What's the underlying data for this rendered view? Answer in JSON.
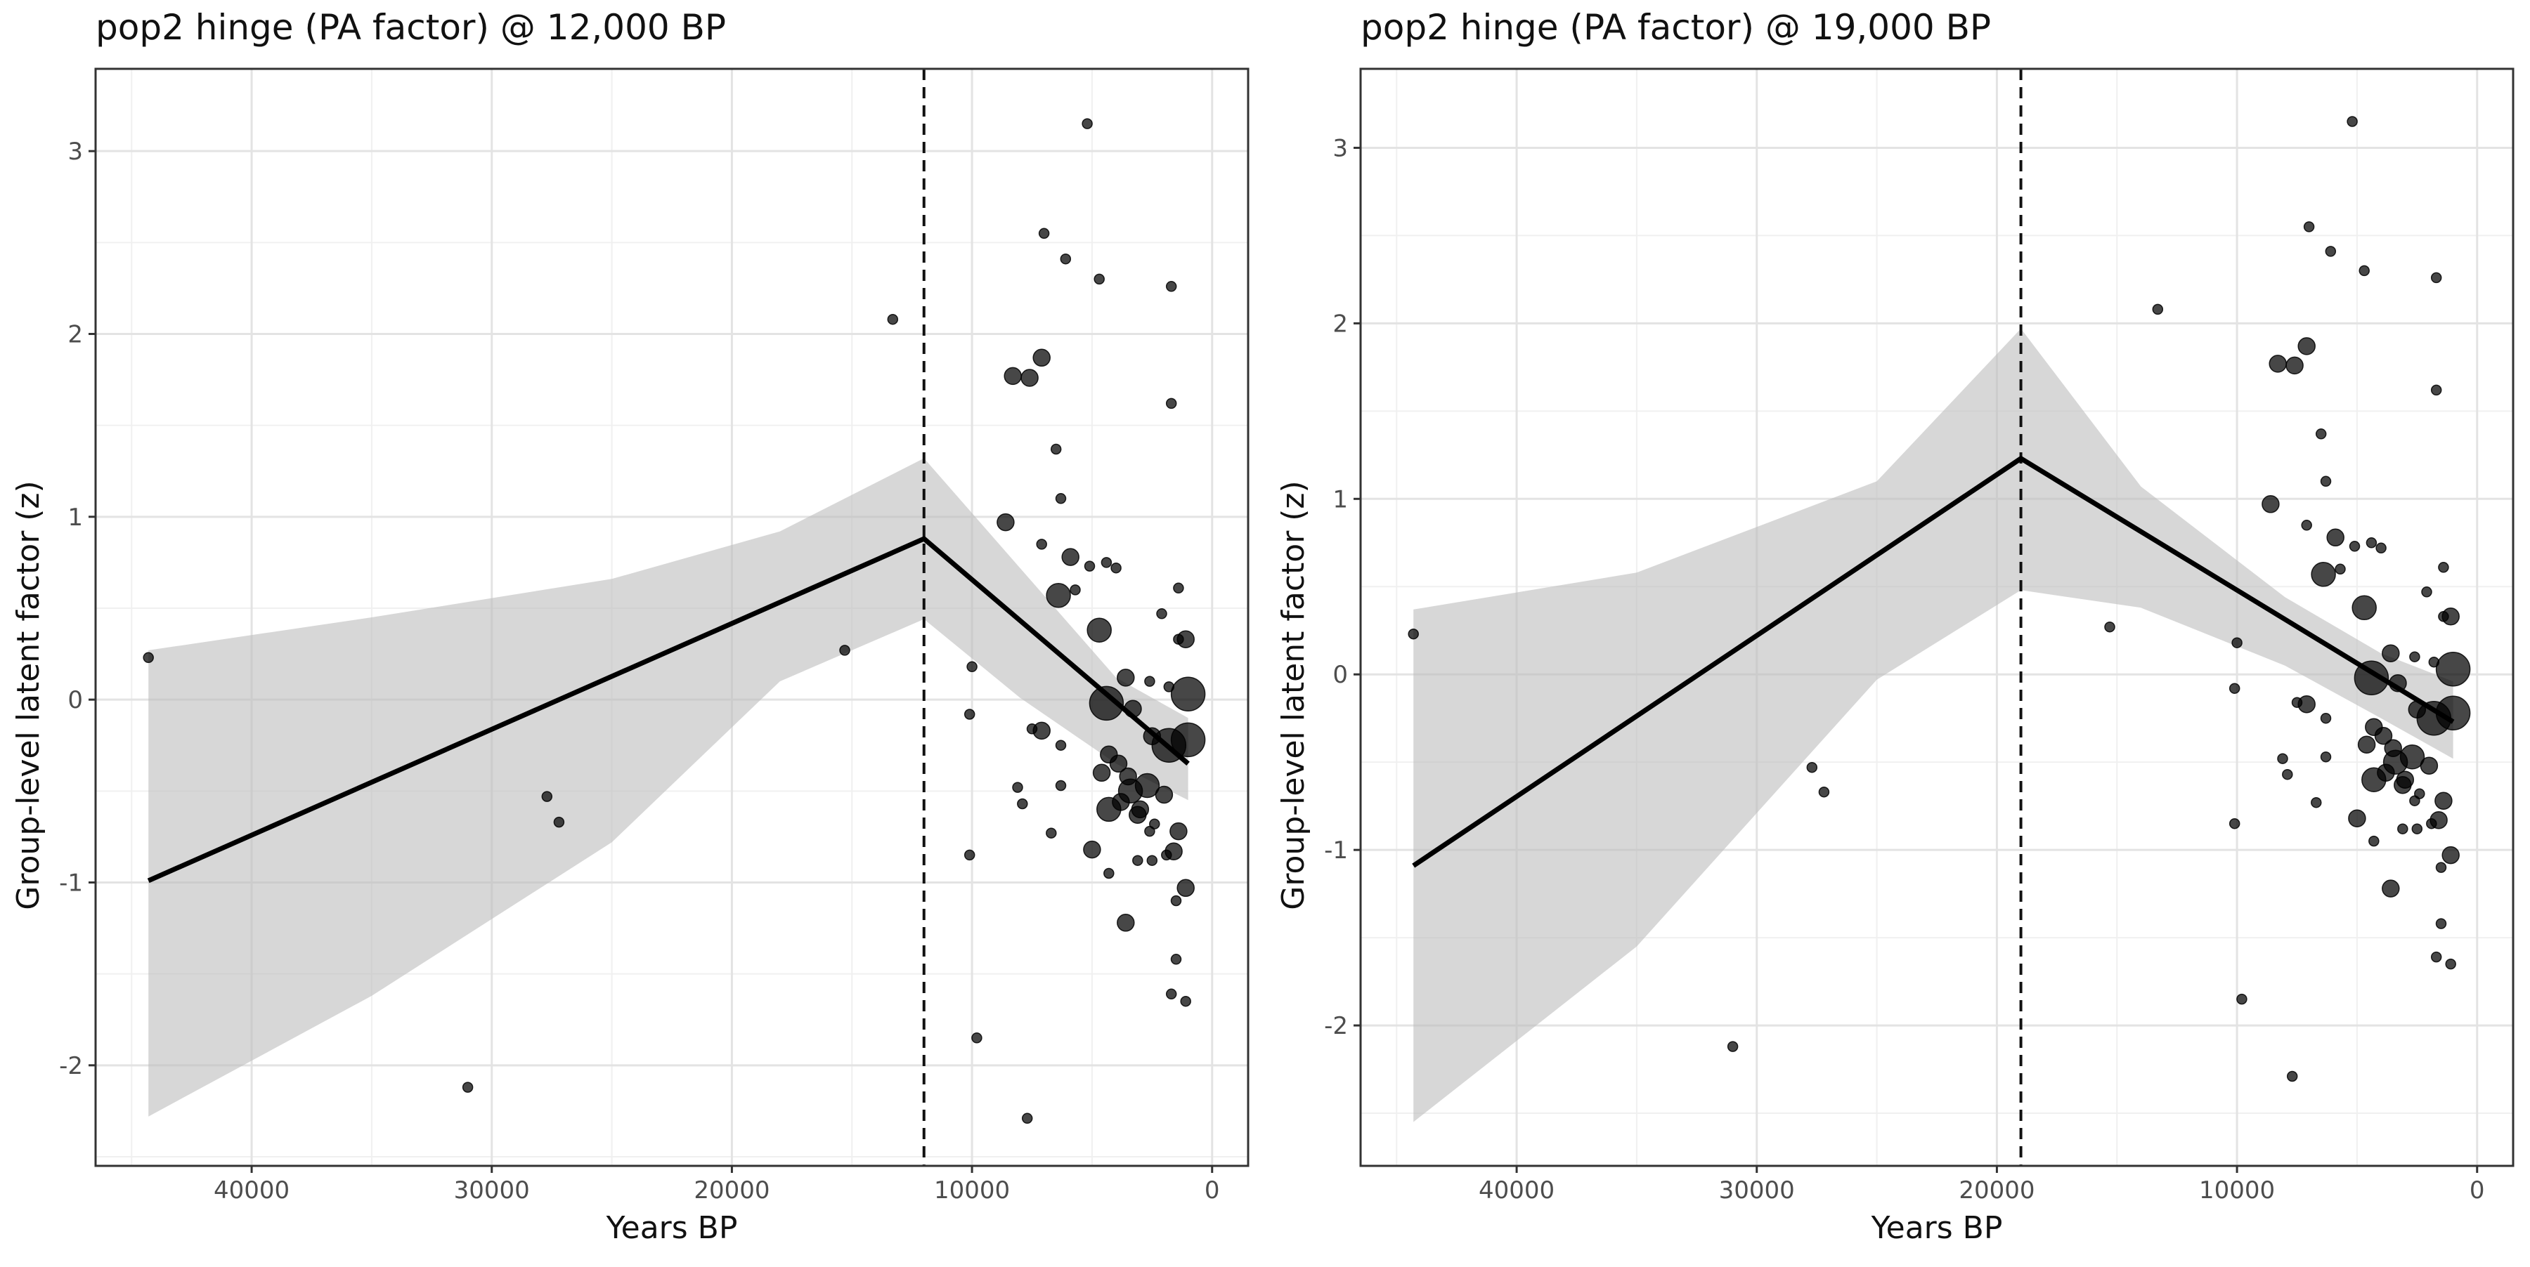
{
  "chart_data": [
    {
      "type": "scatter",
      "title": "pop2 hinge (PA factor) @ 12,000 BP",
      "xlabel": "Years BP",
      "ylabel": "Group-level latent factor (z)",
      "x_reversed": true,
      "xlim": [
        46500,
        -1500
      ],
      "ylim": [
        -2.55,
        3.45
      ],
      "x_ticks": [
        40000,
        30000,
        20000,
        10000,
        0
      ],
      "x_tick_labels": [
        "40000",
        "30000",
        "20000",
        "10000",
        "0"
      ],
      "y_ticks": [
        -2,
        -1,
        0,
        1,
        2,
        3
      ],
      "y_tick_labels": [
        "-2",
        "-1",
        "0",
        "1",
        "2",
        "3"
      ],
      "grid": true,
      "hinge": 12000,
      "fit_line": [
        [
          44300,
          -0.99
        ],
        [
          12000,
          0.88
        ],
        [
          1000,
          -0.35
        ]
      ],
      "ribbon_upper": [
        [
          44300,
          0.27
        ],
        [
          35000,
          0.45
        ],
        [
          25000,
          0.66
        ],
        [
          18000,
          0.92
        ],
        [
          12000,
          1.32
        ],
        [
          8000,
          0.72
        ],
        [
          4000,
          0.12
        ],
        [
          1000,
          -0.1
        ]
      ],
      "ribbon_lower": [
        [
          44300,
          -2.28
        ],
        [
          35000,
          -1.62
        ],
        [
          25000,
          -0.78
        ],
        [
          18000,
          0.1
        ],
        [
          12000,
          0.44
        ],
        [
          8000,
          0.01
        ],
        [
          4000,
          -0.35
        ],
        [
          1000,
          -0.55
        ]
      ],
      "points": [
        [
          44300,
          0.23,
          1
        ],
        [
          31000,
          -2.12,
          1
        ],
        [
          27700,
          -0.53,
          1
        ],
        [
          27200,
          -0.67,
          1
        ],
        [
          15300,
          0.27,
          1
        ],
        [
          13300,
          2.08,
          1
        ],
        [
          10000,
          0.18,
          1
        ],
        [
          10100,
          -0.08,
          1
        ],
        [
          10100,
          -0.85,
          1
        ],
        [
          9800,
          -1.85,
          1
        ],
        [
          7700,
          -2.29,
          1
        ],
        [
          5200,
          3.15,
          1
        ],
        [
          7000,
          2.55,
          1
        ],
        [
          6100,
          2.41,
          1
        ],
        [
          4700,
          2.3,
          1
        ],
        [
          1700,
          2.26,
          1
        ],
        [
          1700,
          1.62,
          1
        ],
        [
          8300,
          1.77,
          2
        ],
        [
          7600,
          1.76,
          2
        ],
        [
          7100,
          1.87,
          2
        ],
        [
          6500,
          1.37,
          1
        ],
        [
          6300,
          1.1,
          1
        ],
        [
          8600,
          0.97,
          2
        ],
        [
          7100,
          0.85,
          1
        ],
        [
          5900,
          0.78,
          2
        ],
        [
          5100,
          0.73,
          1
        ],
        [
          4400,
          0.75,
          1
        ],
        [
          4000,
          0.72,
          1
        ],
        [
          6400,
          0.57,
          3
        ],
        [
          5700,
          0.6,
          1
        ],
        [
          1400,
          0.61,
          1
        ],
        [
          2100,
          0.47,
          1
        ],
        [
          4700,
          0.38,
          3
        ],
        [
          3600,
          0.12,
          2
        ],
        [
          2600,
          0.1,
          1
        ],
        [
          1800,
          0.07,
          1
        ],
        [
          1100,
          0.33,
          2
        ],
        [
          1400,
          0.33,
          1
        ],
        [
          1000,
          0.03,
          4
        ],
        [
          4400,
          -0.02,
          4
        ],
        [
          3300,
          -0.05,
          2
        ],
        [
          2500,
          -0.2,
          2
        ],
        [
          1800,
          -0.25,
          4
        ],
        [
          1000,
          -0.22,
          4
        ],
        [
          7500,
          -0.16,
          1
        ],
        [
          7100,
          -0.17,
          2
        ],
        [
          6300,
          -0.25,
          1
        ],
        [
          4300,
          -0.3,
          2
        ],
        [
          3900,
          -0.35,
          2
        ],
        [
          4600,
          -0.4,
          2
        ],
        [
          3500,
          -0.42,
          2
        ],
        [
          2700,
          -0.47,
          3
        ],
        [
          2000,
          -0.52,
          2
        ],
        [
          3400,
          -0.5,
          3
        ],
        [
          8100,
          -0.48,
          1
        ],
        [
          7900,
          -0.57,
          1
        ],
        [
          6300,
          -0.47,
          1
        ],
        [
          4300,
          -0.6,
          3
        ],
        [
          3800,
          -0.56,
          2
        ],
        [
          3000,
          -0.6,
          2
        ],
        [
          2400,
          -0.68,
          1
        ],
        [
          2600,
          -0.72,
          1
        ],
        [
          3100,
          -0.63,
          2
        ],
        [
          1400,
          -0.72,
          2
        ],
        [
          1600,
          -0.83,
          2
        ],
        [
          2500,
          -0.88,
          1
        ],
        [
          1900,
          -0.85,
          1
        ],
        [
          6700,
          -0.73,
          1
        ],
        [
          5000,
          -0.82,
          2
        ],
        [
          3100,
          -0.88,
          1
        ],
        [
          4300,
          -0.95,
          1
        ],
        [
          3600,
          -1.22,
          2
        ],
        [
          1100,
          -1.03,
          2
        ],
        [
          1500,
          -1.1,
          1
        ],
        [
          1500,
          -1.42,
          1
        ],
        [
          1700,
          -1.61,
          1
        ],
        [
          1100,
          -1.65,
          1
        ]
      ]
    },
    {
      "type": "scatter",
      "title": "pop2 hinge (PA factor) @ 19,000 BP",
      "xlabel": "Years BP",
      "ylabel": "Group-level latent factor (z)",
      "x_reversed": true,
      "xlim": [
        46500,
        -1500
      ],
      "ylim": [
        -2.8,
        3.45
      ],
      "x_ticks": [
        40000,
        30000,
        20000,
        10000,
        0
      ],
      "x_tick_labels": [
        "40000",
        "30000",
        "20000",
        "10000",
        "0"
      ],
      "y_ticks": [
        -2,
        -1,
        0,
        1,
        2,
        3
      ],
      "y_tick_labels": [
        "-2",
        "-1",
        "0",
        "1",
        "2",
        "3"
      ],
      "grid": true,
      "hinge": 19000,
      "fit_line": [
        [
          44300,
          -1.09
        ],
        [
          19000,
          1.23
        ],
        [
          1000,
          -0.27
        ]
      ],
      "ribbon_upper": [
        [
          44300,
          0.37
        ],
        [
          35000,
          0.58
        ],
        [
          25000,
          1.1
        ],
        [
          19000,
          1.97
        ],
        [
          14000,
          1.07
        ],
        [
          8000,
          0.44
        ],
        [
          4000,
          0.12
        ],
        [
          1000,
          -0.04
        ]
      ],
      "ribbon_lower": [
        [
          44300,
          -2.55
        ],
        [
          35000,
          -1.55
        ],
        [
          25000,
          -0.03
        ],
        [
          19000,
          0.48
        ],
        [
          14000,
          0.38
        ],
        [
          8000,
          0.05
        ],
        [
          4000,
          -0.25
        ],
        [
          1000,
          -0.48
        ]
      ],
      "points": [
        [
          44300,
          0.23,
          1
        ],
        [
          31000,
          -2.12,
          1
        ],
        [
          27700,
          -0.53,
          1
        ],
        [
          27200,
          -0.67,
          1
        ],
        [
          15300,
          0.27,
          1
        ],
        [
          13300,
          2.08,
          1
        ],
        [
          10000,
          0.18,
          1
        ],
        [
          10100,
          -0.08,
          1
        ],
        [
          10100,
          -0.85,
          1
        ],
        [
          9800,
          -1.85,
          1
        ],
        [
          7700,
          -2.29,
          1
        ],
        [
          5200,
          3.15,
          1
        ],
        [
          7000,
          2.55,
          1
        ],
        [
          6100,
          2.41,
          1
        ],
        [
          4700,
          2.3,
          1
        ],
        [
          1700,
          2.26,
          1
        ],
        [
          1700,
          1.62,
          1
        ],
        [
          8300,
          1.77,
          2
        ],
        [
          7600,
          1.76,
          2
        ],
        [
          7100,
          1.87,
          2
        ],
        [
          6500,
          1.37,
          1
        ],
        [
          6300,
          1.1,
          1
        ],
        [
          8600,
          0.97,
          2
        ],
        [
          7100,
          0.85,
          1
        ],
        [
          5900,
          0.78,
          2
        ],
        [
          5100,
          0.73,
          1
        ],
        [
          4400,
          0.75,
          1
        ],
        [
          4000,
          0.72,
          1
        ],
        [
          6400,
          0.57,
          3
        ],
        [
          5700,
          0.6,
          1
        ],
        [
          1400,
          0.61,
          1
        ],
        [
          2100,
          0.47,
          1
        ],
        [
          4700,
          0.38,
          3
        ],
        [
          3600,
          0.12,
          2
        ],
        [
          2600,
          0.1,
          1
        ],
        [
          1800,
          0.07,
          1
        ],
        [
          1100,
          0.33,
          2
        ],
        [
          1400,
          0.33,
          1
        ],
        [
          1000,
          0.03,
          4
        ],
        [
          4400,
          -0.02,
          4
        ],
        [
          3300,
          -0.05,
          2
        ],
        [
          2500,
          -0.2,
          2
        ],
        [
          1800,
          -0.25,
          4
        ],
        [
          1000,
          -0.22,
          4
        ],
        [
          7500,
          -0.16,
          1
        ],
        [
          7100,
          -0.17,
          2
        ],
        [
          6300,
          -0.25,
          1
        ],
        [
          4300,
          -0.3,
          2
        ],
        [
          3900,
          -0.35,
          2
        ],
        [
          4600,
          -0.4,
          2
        ],
        [
          3500,
          -0.42,
          2
        ],
        [
          2700,
          -0.47,
          3
        ],
        [
          2000,
          -0.52,
          2
        ],
        [
          3400,
          -0.5,
          3
        ],
        [
          8100,
          -0.48,
          1
        ],
        [
          7900,
          -0.57,
          1
        ],
        [
          6300,
          -0.47,
          1
        ],
        [
          4300,
          -0.6,
          3
        ],
        [
          3800,
          -0.56,
          2
        ],
        [
          3000,
          -0.6,
          2
        ],
        [
          2400,
          -0.68,
          1
        ],
        [
          2600,
          -0.72,
          1
        ],
        [
          3100,
          -0.63,
          2
        ],
        [
          1400,
          -0.72,
          2
        ],
        [
          1600,
          -0.83,
          2
        ],
        [
          2500,
          -0.88,
          1
        ],
        [
          1900,
          -0.85,
          1
        ],
        [
          6700,
          -0.73,
          1
        ],
        [
          5000,
          -0.82,
          2
        ],
        [
          3100,
          -0.88,
          1
        ],
        [
          4300,
          -0.95,
          1
        ],
        [
          3600,
          -1.22,
          2
        ],
        [
          1100,
          -1.03,
          2
        ],
        [
          1500,
          -1.1,
          1
        ],
        [
          1500,
          -1.42,
          1
        ],
        [
          1700,
          -1.61,
          1
        ],
        [
          1100,
          -1.65,
          1
        ]
      ]
    }
  ]
}
